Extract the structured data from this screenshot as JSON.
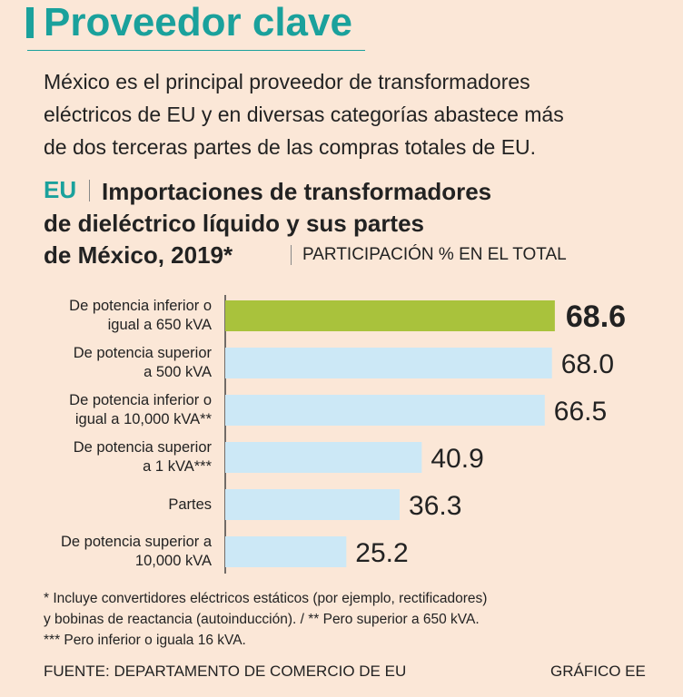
{
  "header": {
    "title": "Proveedor clave",
    "description": "México es el principal proveedor de transformadores\neléctricos de EU y en diversas categorías abastece más\nde dos terceras partes de las compras totales de EU."
  },
  "chart_data": {
    "type": "bar",
    "orientation": "horizontal",
    "title_prefix": "EU",
    "title": "Importaciones de transformadores\nde dieléctrico líquido y sus partes\nde México, 2019*",
    "subtitle": "PARTICIPACIÓN % EN EL TOTAL",
    "categories": [
      "De potencia inferior o\nigual a 650 kVA",
      "De potencia superior\na 500 kVA",
      "De potencia inferior o\nigual a 10,000 kVA**",
      "De potencia superior\na 1 kVA***",
      "Partes",
      "De potencia superior a\n10,000 kVA"
    ],
    "values": [
      68.6,
      68.0,
      66.5,
      40.9,
      36.3,
      25.2
    ],
    "value_labels": [
      "68.6",
      "68.0",
      "66.5",
      "40.9",
      "36.3",
      "25.2"
    ],
    "colors": [
      "#a9c23c",
      "#cce8f6",
      "#cce8f6",
      "#cce8f6",
      "#cce8f6",
      "#cce8f6"
    ]
  },
  "notes": "* Incluye convertidores eléctricos estáticos (por ejemplo, rectificadores)\ny bobinas de reactancia (autoinducción). / ** Pero superior a 650 kVA.\n*** Pero inferior o iguala 16 kVA.",
  "source": "FUENTE: DEPARTAMENTO DE COMERCIO DE EU",
  "credit": "GRÁFICO EE"
}
